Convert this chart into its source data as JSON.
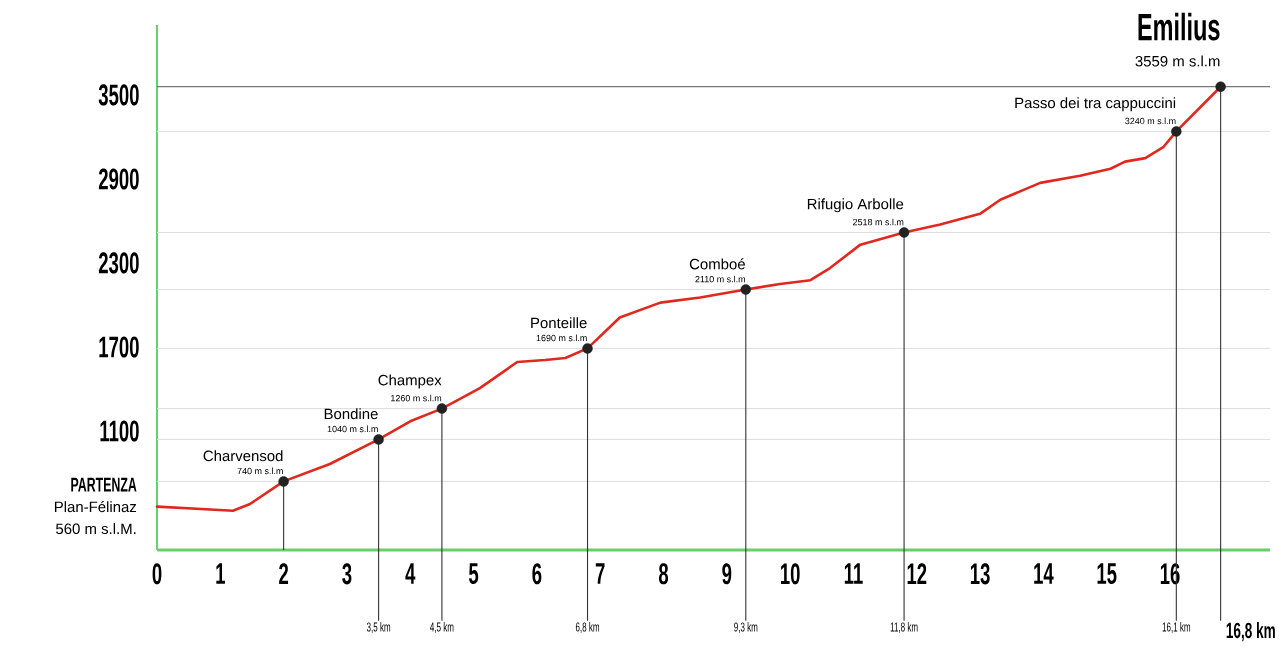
{
  "chart_data": {
    "type": "line",
    "xlim": [
      0,
      17.58
    ],
    "ylim": [
      250,
      4000
    ],
    "xticks": [
      0,
      1,
      2,
      3,
      4,
      5,
      6,
      7,
      8,
      9,
      10,
      11,
      12,
      13,
      14,
      15,
      16
    ],
    "yticks": [
      1100,
      1700,
      2300,
      2900,
      3500
    ],
    "series": [
      {
        "color": "#e0281e",
        "line_style": "solid",
        "x": [
          0,
          1.2,
          1.47,
          2,
          2.73,
          3.5,
          4.0,
          4.5,
          5.1,
          5.69,
          6.13,
          6.45,
          6.8,
          7.31,
          7.95,
          8.58,
          9.3,
          9.84,
          10.32,
          10.63,
          11.11,
          11.8,
          12.37,
          13.0,
          13.32,
          13.95,
          14.58,
          15.06,
          15.29,
          15.61,
          15.9,
          16.1,
          16.8
        ],
        "values": [
          560,
          530,
          579,
          740,
          864,
          1040,
          1169,
          1260,
          1406,
          1593,
          1607,
          1621,
          1690,
          1911,
          2017,
          2053,
          2110,
          2150,
          2177,
          2264,
          2431,
          2518,
          2575,
          2651,
          2752,
          2872,
          2923,
          2973,
          3024,
          3049,
          3130,
          3240,
          3559
        ]
      },
      {
        "type": "scatter",
        "color": "#222222",
        "marker": "circle",
        "x": [
          2,
          3.5,
          4.5,
          6.8,
          9.3,
          11.8,
          16.1,
          16.8
        ],
        "values": [
          740,
          1040,
          1260,
          1690,
          2110,
          2518,
          3240,
          3559
        ]
      }
    ],
    "ref_lines": [
      {
        "axis": "y",
        "value": 3559,
        "color": "#555555"
      },
      {
        "axis": "y",
        "value": 3240,
        "color": "#dddddd"
      },
      {
        "axis": "y",
        "value": 2518,
        "color": "#dddddd"
      },
      {
        "axis": "y",
        "value": 2110,
        "color": "#dddddd"
      },
      {
        "axis": "y",
        "value": 1690,
        "color": "#dddddd"
      },
      {
        "axis": "y",
        "value": 1260,
        "color": "#dddddd"
      },
      {
        "axis": "y",
        "value": 1040,
        "color": "#dddddd"
      },
      {
        "axis": "y",
        "value": 740,
        "color": "#dddddd"
      },
      {
        "axis": "x",
        "value": 2,
        "color": "#333333"
      },
      {
        "axis": "x",
        "value": 3.5,
        "label": "3,5 km",
        "color": "#333333"
      },
      {
        "axis": "x",
        "value": 4.5,
        "label": "4,5 km",
        "color": "#333333"
      },
      {
        "axis": "x",
        "value": 6.8,
        "label": "6,8 km",
        "color": "#333333"
      },
      {
        "axis": "x",
        "value": 9.3,
        "label": "9,3 km",
        "color": "#333333"
      },
      {
        "axis": "x",
        "value": 11.8,
        "label": "11,8 km",
        "color": "#333333"
      },
      {
        "axis": "x",
        "value": 16.1,
        "label": "16,1 km",
        "color": "#333333"
      },
      {
        "axis": "x",
        "value": 16.8,
        "label": "16,8 km",
        "color": "#333333"
      }
    ],
    "annotations": [
      {
        "text": "PARTENZA",
        "x": 0,
        "y": 560
      },
      {
        "text": "Plan-Félinaz",
        "x": 0,
        "y": 560
      },
      {
        "text": "560 m s.l.M.",
        "x": 0,
        "y": 560
      },
      {
        "text": "Charvensod",
        "x": 2,
        "y": 740
      },
      {
        "text": "740 m s.l.m",
        "x": 2,
        "y": 740
      },
      {
        "text": "Bondine",
        "x": 3.5,
        "y": 1040
      },
      {
        "text": "1040 m s.l.m",
        "x": 3.5,
        "y": 1040
      },
      {
        "text": "Champex",
        "x": 4.5,
        "y": 1260
      },
      {
        "text": "1260 m s.l.m",
        "x": 4.5,
        "y": 1260
      },
      {
        "text": "Ponteille",
        "x": 6.8,
        "y": 1690
      },
      {
        "text": "1690 m s.l.m",
        "x": 6.8,
        "y": 1690
      },
      {
        "text": "Comboé",
        "x": 9.3,
        "y": 2110
      },
      {
        "text": "2110 m s.l.m",
        "x": 9.3,
        "y": 2110
      },
      {
        "text": "Rifugio Arbolle",
        "x": 11.8,
        "y": 2518
      },
      {
        "text": "2518 m s.l.m",
        "x": 11.8,
        "y": 2518
      },
      {
        "text": "Passo dei tra cappuccini",
        "x": 16.1,
        "y": 3240
      },
      {
        "text": "3240 m s.l.m",
        "x": 16.1,
        "y": 3240
      },
      {
        "text": "Emilius",
        "x": 16.8,
        "y": 3559
      },
      {
        "text": "3559 m s.l.m",
        "x": 16.8,
        "y": 3559
      }
    ]
  }
}
